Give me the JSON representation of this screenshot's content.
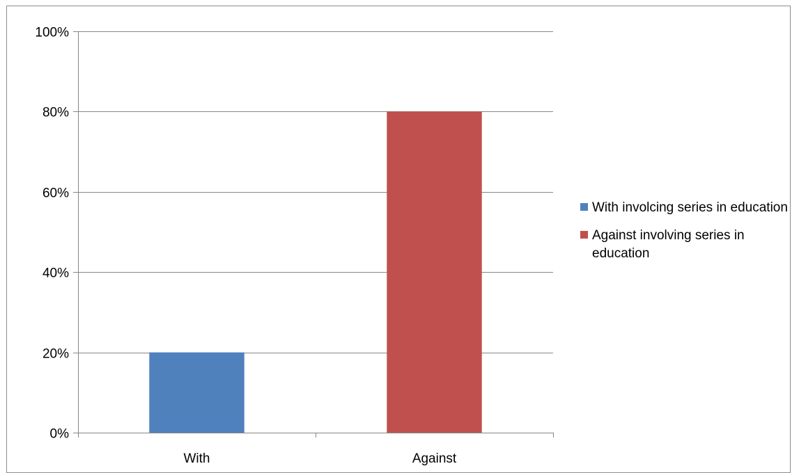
{
  "chart_data": {
    "type": "bar",
    "categories": [
      "With",
      "Against"
    ],
    "series": [
      {
        "name": "With involcing series in education",
        "category": "With",
        "value": 20,
        "color": "#4f81bd"
      },
      {
        "name": "Against involving series in education",
        "category": "Against",
        "value": 80,
        "color": "#c0504d"
      }
    ],
    "y_ticks": [
      "0%",
      "20%",
      "40%",
      "60%",
      "80%",
      "100%"
    ],
    "ylim": [
      0,
      100
    ],
    "y_unit": "%",
    "grid": true,
    "legend_position": "right"
  },
  "colors": {
    "gridline": "#868686",
    "axis": "#868686"
  }
}
